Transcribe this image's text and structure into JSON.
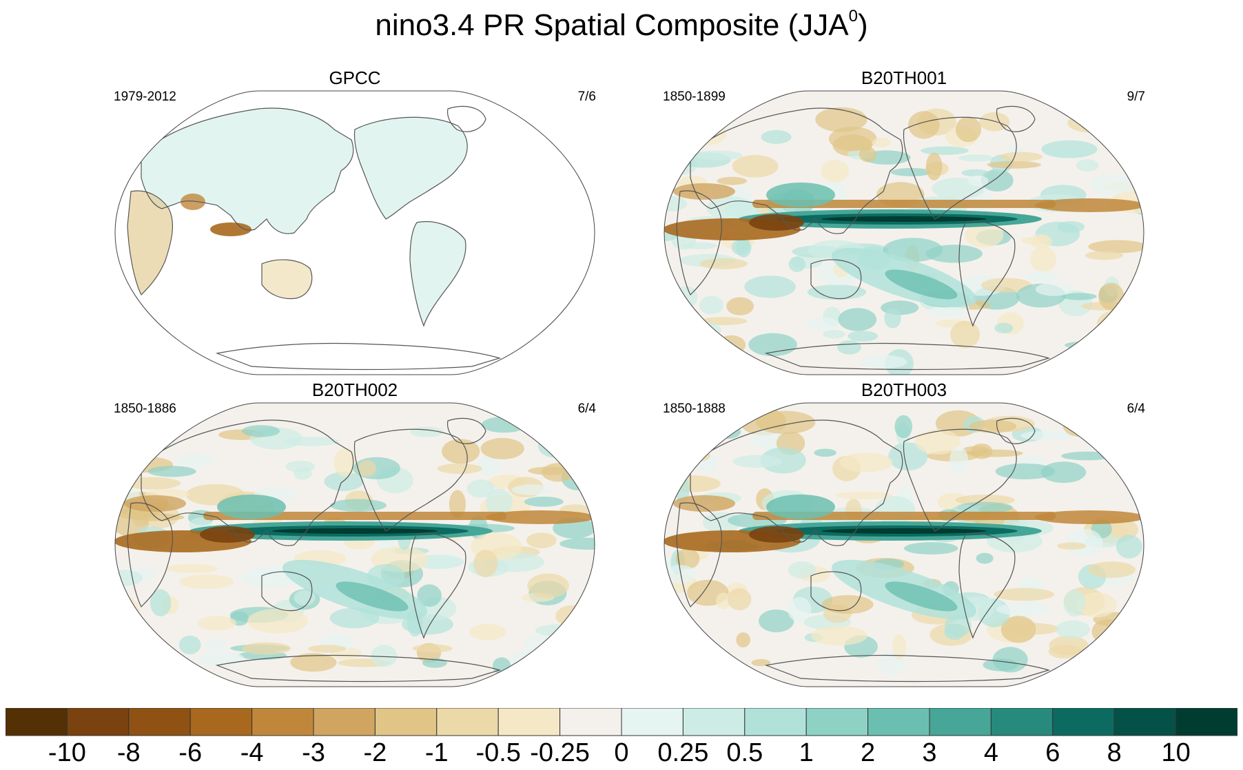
{
  "title": {
    "main": "nino3.4 PR Spatial Composite (JJA",
    "sup": "0",
    "close": ")"
  },
  "panels": [
    {
      "title": "GPCC",
      "period": "1979-2012",
      "count": "7/6",
      "coverage": "land-only"
    },
    {
      "title": "B20TH001",
      "period": "1850-1899",
      "count": "9/7",
      "coverage": "global"
    },
    {
      "title": "B20TH002",
      "period": "1850-1886",
      "count": "6/4",
      "coverage": "global"
    },
    {
      "title": "B20TH003",
      "period": "1850-1888",
      "count": "6/4",
      "coverage": "global"
    }
  ],
  "colorbar": {
    "colors": [
      "#543005",
      "#7a420e",
      "#8f5213",
      "#a8691f",
      "#c0873b",
      "#d0a560",
      "#e0c586",
      "#ecd9a8",
      "#f5e8c6",
      "#f4f1ec",
      "#e6f4f2",
      "#cdece6",
      "#b0e2da",
      "#8ed2c6",
      "#6bbfb0",
      "#46a698",
      "#268a7d",
      "#0c6b60",
      "#045147",
      "#003c30"
    ],
    "ticks": [
      "-10",
      "-8",
      "-6",
      "-4",
      "-3",
      "-2",
      "-1",
      "-0.5",
      "-0.25",
      "0",
      "0.25",
      "0.5",
      "1",
      "2",
      "3",
      "4",
      "6",
      "8",
      "10"
    ]
  }
}
